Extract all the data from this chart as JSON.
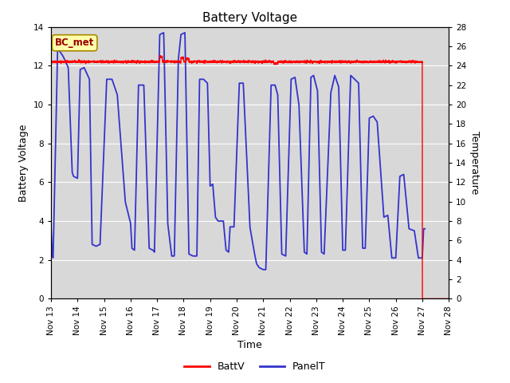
{
  "title": "Battery Voltage",
  "xlabel": "Time",
  "ylabel_left": "Battery Voltage",
  "ylabel_right": "Temperature",
  "ylim_left": [
    0,
    14
  ],
  "ylim_right": [
    0,
    28
  ],
  "yticks_left": [
    0,
    2,
    4,
    6,
    8,
    10,
    12,
    14
  ],
  "yticks_right": [
    0,
    2,
    4,
    6,
    8,
    10,
    12,
    14,
    16,
    18,
    20,
    22,
    24,
    26,
    28
  ],
  "xlim": [
    13,
    28
  ],
  "xtick_positions": [
    13,
    14,
    15,
    16,
    17,
    18,
    19,
    20,
    21,
    22,
    23,
    24,
    25,
    26,
    27,
    28
  ],
  "xtick_labels": [
    "Nov 13",
    "Nov 14",
    "Nov 15",
    "Nov 16",
    "Nov 17",
    "Nov 18",
    "Nov 19",
    "Nov 20",
    "Nov 21",
    "Nov 22",
    "Nov 23",
    "Nov 24",
    "Nov 25",
    "Nov 26",
    "Nov 27",
    "Nov 28"
  ],
  "bc_met_label": "BC_met",
  "legend_labels": [
    "BattV",
    "PanelT"
  ],
  "battv_color": "#ff0000",
  "panelt_color": "#3333cc",
  "bg_color": "#d8d8d8",
  "title_fontsize": 11,
  "axis_label_fontsize": 9,
  "tick_fontsize": 7.5,
  "legend_fontsize": 9,
  "battv_flat": 12.2,
  "battv_drop_day": 27.0
}
